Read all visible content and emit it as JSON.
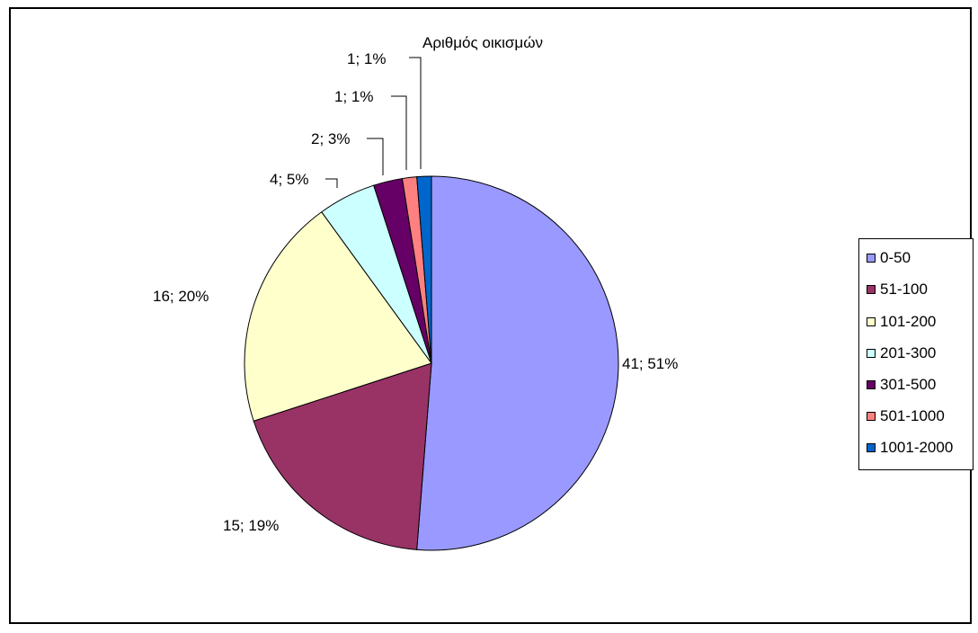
{
  "chart_data": {
    "type": "pie",
    "title": "Αριθμός οικισμών",
    "slices": [
      {
        "category": "0-50",
        "value": 41,
        "percent": 51,
        "label": "41; 51%",
        "color": "#9999ff"
      },
      {
        "category": "51-100",
        "value": 15,
        "percent": 19,
        "label": "15; 19%",
        "color": "#993366"
      },
      {
        "category": "101-200",
        "value": 16,
        "percent": 20,
        "label": "16; 20%",
        "color": "#ffffcc"
      },
      {
        "category": "201-300",
        "value": 4,
        "percent": 5,
        "label": "4; 5%",
        "color": "#ccffff"
      },
      {
        "category": "301-500",
        "value": 2,
        "percent": 3,
        "label": "2; 3%",
        "color": "#660066"
      },
      {
        "category": "501-1000",
        "value": 1,
        "percent": 1,
        "label": "1; 1%",
        "color": "#ff8080"
      },
      {
        "category": "1001-2000",
        "value": 1,
        "percent": 1,
        "label": "1; 1%",
        "color": "#0066cc"
      }
    ],
    "legend_position": "right"
  }
}
